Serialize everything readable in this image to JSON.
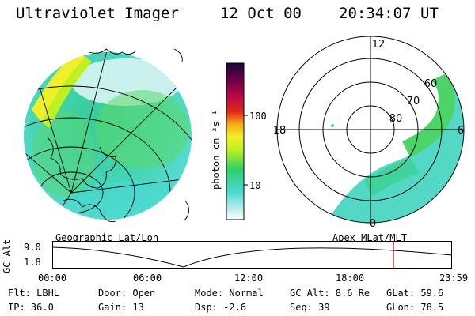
{
  "header": {
    "instrument": "Ultraviolet Imager",
    "date": "12 Oct 00",
    "time": "20:34:07 UT"
  },
  "colorbar": {
    "unit_label": "photon cm⁻²s⁻¹",
    "ticks": [
      {
        "value": 100,
        "label": "100"
      },
      {
        "value": 10,
        "label": "10"
      }
    ],
    "range": [
      2,
      800
    ],
    "scale": "log",
    "colors": [
      "#ffffff",
      "#b8ecee",
      "#48d8d0",
      "#30d068",
      "#c0f020",
      "#f0f028",
      "#f8a818",
      "#e02818",
      "#b80848",
      "#700048",
      "#180838"
    ]
  },
  "left_panel": {
    "caption": "Geographic Lat/Lon"
  },
  "right_panel": {
    "caption": "Apex MLat/MLT",
    "mlt_labels": {
      "top": "12",
      "left": "18",
      "right": "6",
      "bottom": "0"
    },
    "lat_labels": [
      "60",
      "70",
      "80"
    ]
  },
  "altitude_plot": {
    "ylabel": "GC Alt",
    "yticks": [
      "9.0",
      "1.8"
    ],
    "xticks": [
      "00:00",
      "06:00",
      "12:00",
      "18:00",
      "23:59"
    ],
    "marker_color": "#d00000"
  },
  "footer": {
    "flt": "Flt: LBHL",
    "door": "Door: Open",
    "mode": "Mode: Normal",
    "gc_alt": "GC Alt: 8.6 Re",
    "glat": "GLat:  59.6",
    "ip": "IP: 36.0",
    "gain": "Gain: 13",
    "dsp": "Dsp:   -2.6",
    "seq": "Seq: 39",
    "glon": "GLon:  78.5"
  }
}
